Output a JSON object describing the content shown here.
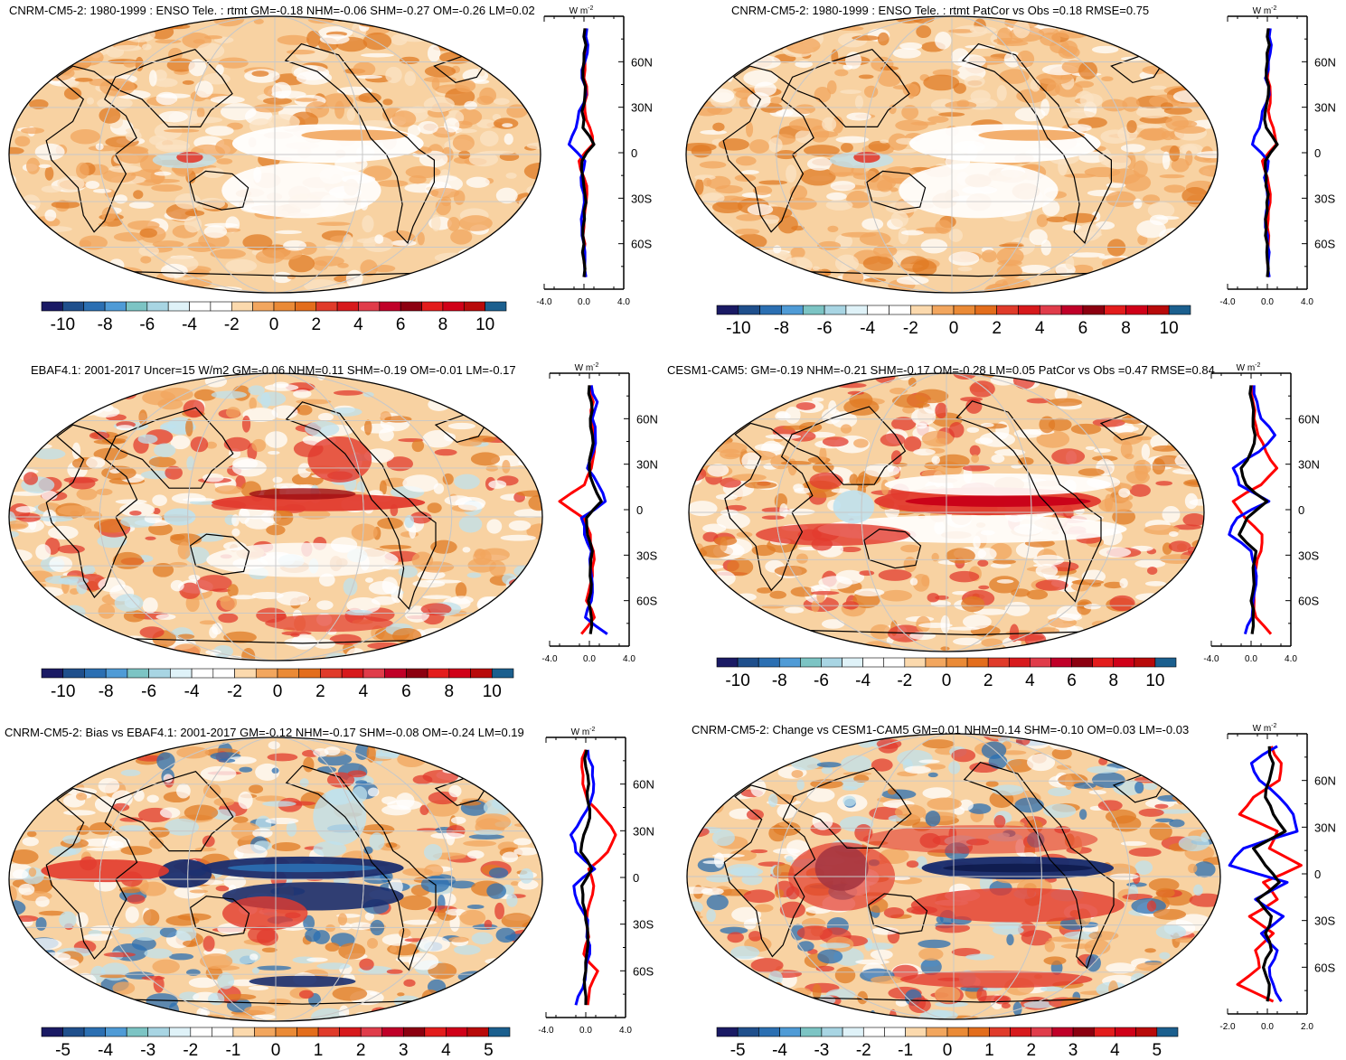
{
  "figure": {
    "panels": [
      {
        "id": "p1",
        "title": "CNRM-CM5-2: 1980-1999 : ENSO Tele. : rtmt GM=-0.18 NHM=-0.06 SHM=-0.27 OM=-0.26 LM=0.02",
        "variant": "model",
        "colorbar": "cb10",
        "zonal": {
          "xticks": [
            "-4.0",
            "0.0",
            "4.0"
          ],
          "xrange": [
            -4,
            4
          ],
          "black": [
            0.1,
            0.2,
            0.0,
            -0.1,
            0.1,
            -0.2,
            -0.1,
            1.0,
            -0.2,
            -0.1,
            0.1,
            0.0,
            -0.1,
            0.0,
            0.0,
            0.0
          ],
          "red": [
            0.2,
            0.3,
            0.1,
            0.0,
            0.3,
            0.1,
            0.6,
            0.9,
            -0.5,
            0.0,
            0.3,
            0.1,
            0.0,
            0.1,
            0.0,
            0.1
          ],
          "blue": [
            0.3,
            0.4,
            0.1,
            -0.2,
            0.2,
            -0.5,
            -0.8,
            -1.5,
            0.1,
            -0.3,
            0.0,
            -0.1,
            -0.2,
            0.0,
            0.1,
            0.2
          ]
        }
      },
      {
        "id": "p2",
        "title": "CNRM-CM5-2: 1980-1999 : ENSO Tele. : rtmt PatCor vs Obs =0.18 RMSE=0.75",
        "variant": "model",
        "colorbar": "cb10",
        "zonal": {
          "xticks": [
            "-4.0",
            "0.0",
            "4.0"
          ],
          "xrange": [
            -4,
            4
          ],
          "black": [
            0.1,
            0.2,
            0.0,
            -0.1,
            0.1,
            -0.2,
            -0.1,
            1.0,
            -0.2,
            -0.1,
            0.1,
            0.0,
            -0.1,
            0.0,
            0.0,
            0.0
          ],
          "red": [
            0.2,
            0.3,
            0.1,
            0.0,
            0.3,
            0.1,
            0.6,
            0.9,
            -0.5,
            0.0,
            0.3,
            0.1,
            0.0,
            0.1,
            0.0,
            0.1
          ],
          "blue": [
            0.3,
            0.4,
            0.1,
            -0.2,
            0.2,
            -0.5,
            -0.8,
            -1.5,
            0.1,
            -0.3,
            0.0,
            -0.1,
            -0.2,
            0.0,
            0.1,
            0.2
          ]
        }
      },
      {
        "id": "p3",
        "title": "EBAF4.1: 2001-2017 Uncer=15 W/m2 GM=-0.06 NHM=0.11 SHM=-0.19 OM=-0.01 LM=-0.17",
        "variant": "obs",
        "colorbar": "cb10",
        "zonal": {
          "xticks": [
            "-4.0",
            "0.0",
            "4.0"
          ],
          "xrange": [
            -4,
            4
          ],
          "black": [
            0.0,
            0.2,
            0.1,
            0.3,
            0.2,
            0.0,
            0.4,
            1.2,
            -0.3,
            -0.2,
            0.3,
            0.1,
            0.2,
            -0.1,
            0.2,
            0.1
          ],
          "red": [
            0.1,
            0.4,
            0.2,
            0.4,
            0.5,
            0.2,
            -0.5,
            -3.0,
            -0.6,
            0.1,
            0.4,
            0.3,
            0.1,
            -0.3,
            0.5,
            -0.8
          ],
          "blue": [
            0.2,
            0.8,
            0.3,
            0.6,
            0.4,
            -0.2,
            0.9,
            1.6,
            -0.8,
            -0.5,
            0.2,
            0.1,
            0.3,
            0.2,
            -0.4,
            1.8
          ]
        }
      },
      {
        "id": "p4",
        "title": "CESM1-CAM5: GM=-0.19 NHM=-0.21 SHM=-0.17 OM=-0.28 LM=0.05 PatCor vs Obs =0.47 RMSE=0.84",
        "variant": "cesm",
        "colorbar": "cb10",
        "zonal": {
          "xticks": [
            "-4.0",
            "0.0",
            "4.0"
          ],
          "xrange": [
            -4,
            4
          ],
          "black": [
            0.0,
            0.1,
            0.2,
            0.4,
            0.0,
            -1.0,
            -0.5,
            1.6,
            -0.4,
            -1.2,
            0.5,
            0.2,
            0.3,
            0.0,
            0.2,
            0.1
          ],
          "red": [
            0.2,
            0.2,
            0.3,
            0.7,
            1.5,
            2.6,
            1.0,
            -1.8,
            -0.6,
            1.1,
            1.0,
            0.5,
            0.4,
            0.3,
            0.5,
            2.0
          ],
          "blue": [
            0.3,
            0.6,
            1.0,
            2.4,
            0.8,
            -1.8,
            -1.2,
            1.8,
            -1.4,
            -2.2,
            0.0,
            0.4,
            0.5,
            0.2,
            0.1,
            -0.6
          ]
        }
      },
      {
        "id": "p5",
        "title": "CNRM-CM5-2: Bias vs EBAF4.1: 2001-2017 GM=-0.12 NHM=-0.17 SHM=-0.08 OM=-0.24 LM=0.19",
        "variant": "bias",
        "colorbar": "cb5",
        "zonal": {
          "xticks": [
            "-4.0",
            "0.0",
            "4.0"
          ],
          "xrange": [
            -4,
            4
          ],
          "black": [
            0.1,
            0.0,
            0.3,
            0.2,
            0.4,
            -0.2,
            -0.5,
            0.6,
            -0.4,
            -0.3,
            0.0,
            0.2,
            0.1,
            0.0,
            -0.1,
            0.0
          ],
          "red": [
            0.0,
            -0.4,
            -0.3,
            0.2,
            1.8,
            3.0,
            2.2,
            0.3,
            0.8,
            0.4,
            0.1,
            0.3,
            -0.2,
            1.2,
            0.4,
            0.2
          ],
          "blue": [
            0.2,
            0.7,
            0.8,
            0.5,
            -0.4,
            -1.5,
            -1.0,
            0.9,
            -1.2,
            -0.8,
            0.2,
            0.1,
            0.4,
            0.0,
            -0.3,
            -1.0
          ]
        }
      },
      {
        "id": "p6",
        "title": "CNRM-CM5-2: Change vs CESM1-CAM5 GM=0.01 NHM=0.14 SHM=-0.10 OM=0.03 LM=-0.03",
        "variant": "change",
        "colorbar": "cb5",
        "zonal": {
          "xticks": [
            "-2.0",
            "0.0",
            "2.0"
          ],
          "xrange": [
            -2,
            2
          ],
          "black": [
            0.1,
            0.3,
            0.1,
            -0.1,
            0.3,
            0.9,
            -0.7,
            -0.1,
            0.6,
            -0.5,
            0.2,
            -0.1,
            0.2,
            -0.2,
            0.1,
            0.0
          ],
          "red": [
            0.2,
            0.7,
            0.6,
            -0.7,
            -1.4,
            0.5,
            0.1,
            1.7,
            -0.2,
            0.5,
            -0.9,
            0.3,
            -0.6,
            -0.4,
            -1.5,
            0.3
          ],
          "blue": [
            0.5,
            -0.8,
            -0.4,
            0.6,
            1.3,
            1.5,
            -1.2,
            -1.9,
            1.0,
            -0.6,
            0.8,
            -0.3,
            0.5,
            0.1,
            0.3,
            0.7
          ]
        }
      }
    ],
    "zonal_lat_labels": [
      "60N",
      "30N",
      "0",
      "30S",
      "60S"
    ],
    "zonal_units": "W m",
    "zonal_units_sup": "-2",
    "colorbars": {
      "cb10": {
        "labels": [
          "-10",
          "-8",
          "-6",
          "-4",
          "-2",
          "0",
          "2",
          "4",
          "6",
          "8",
          "10"
        ],
        "colors": [
          "#1a1a64",
          "#1f4f8c",
          "#2b6fb2",
          "#4f9bd6",
          "#7cc4c4",
          "#a8d5e3",
          "#dff2f8",
          "#ffffff",
          "#ffffff",
          "#fbd9ad",
          "#f2a65e",
          "#ea8a36",
          "#e36d1c",
          "#e03b2a",
          "#d7191c",
          "#e03c4a",
          "#c00028",
          "#8c0010",
          "#e31c1c",
          "#d00018",
          "#b80a0a",
          "#1b5f8e"
        ]
      },
      "cb5": {
        "labels": [
          "-5",
          "-4",
          "-3",
          "-2",
          "-1",
          "0",
          "1",
          "2",
          "3",
          "4",
          "5"
        ],
        "colors": [
          "#1a1a64",
          "#1f4f8c",
          "#2b6fb2",
          "#4f9bd6",
          "#7cc4c4",
          "#a8d5e3",
          "#dff2f8",
          "#ffffff",
          "#ffffff",
          "#fbd9ad",
          "#f2a65e",
          "#ea8a36",
          "#e36d1c",
          "#e03b2a",
          "#d7191c",
          "#e03c4a",
          "#c00028",
          "#8c0010",
          "#e31c1c",
          "#d00018",
          "#b80a0a",
          "#1b5f8e"
        ]
      }
    },
    "colors": {
      "ocean_base": "#f8d2a2",
      "orange": "#f2a65e",
      "deep_orange": "#e07b24",
      "red": "#e23b2e",
      "dark_red": "#9c0d12",
      "blue": "#2b6fb2",
      "navy": "#1a2d6e",
      "light_blue": "#bfe1ee",
      "white": "#ffffff",
      "grid": "#c8c8c8",
      "line_black": "#000000",
      "line_red": "#ff0000",
      "line_blue": "#0000ff"
    }
  }
}
